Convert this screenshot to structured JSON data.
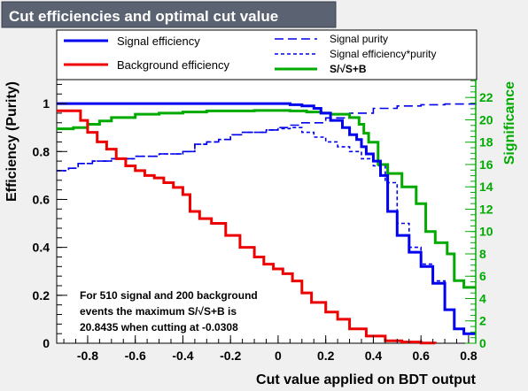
{
  "chart_data": {
    "type": "line",
    "title": "Cut efficiencies and optimal cut value",
    "xlabel": "Cut value applied on BDT output",
    "ylabel": "Efficiency (Purity)",
    "y2label": "Significance",
    "xlim": [
      -0.93,
      0.83
    ],
    "ylim": [
      0,
      1.1
    ],
    "y2lim": [
      0,
      23.6
    ],
    "x_ticks": [
      "-0.8",
      "-0.6",
      "-0.4",
      "-0.2",
      "0",
      "0.2",
      "0.4",
      "0.6",
      "0.8"
    ],
    "x_tick_values": [
      -0.8,
      -0.6,
      -0.4,
      -0.2,
      0,
      0.2,
      0.4,
      0.6,
      0.8
    ],
    "y_ticks": [
      "0",
      "0.2",
      "0.4",
      "0.6",
      "0.8",
      "1"
    ],
    "y_tick_values": [
      0,
      0.2,
      0.4,
      0.6,
      0.8,
      1
    ],
    "y2_ticks": [
      "0",
      "2",
      "4",
      "6",
      "8",
      "10",
      "12",
      "14",
      "16",
      "18",
      "20",
      "22"
    ],
    "y2_tick_values": [
      0,
      2,
      4,
      6,
      8,
      10,
      12,
      14,
      16,
      18,
      20,
      22
    ],
    "legend_position": "top, full width",
    "series": [
      {
        "name": "Signal efficiency",
        "color": "#0000ee",
        "style": "solid",
        "axis": "left",
        "x": [
          -0.93,
          0.05,
          0.1,
          0.15,
          0.18,
          0.22,
          0.27,
          0.3,
          0.33,
          0.35,
          0.37,
          0.4,
          0.43,
          0.46,
          0.5,
          0.55,
          0.6,
          0.65,
          0.7,
          0.74,
          0.78,
          0.83
        ],
        "y": [
          1.0,
          0.995,
          0.99,
          0.98,
          0.96,
          0.93,
          0.9,
          0.87,
          0.85,
          0.82,
          0.79,
          0.76,
          0.7,
          0.55,
          0.45,
          0.38,
          0.32,
          0.25,
          0.14,
          0.06,
          0.04,
          0.04
        ]
      },
      {
        "name": "Background efficiency",
        "color": "#ee0000",
        "style": "solid",
        "axis": "left",
        "x": [
          -0.93,
          -0.86,
          -0.83,
          -0.8,
          -0.76,
          -0.72,
          -0.68,
          -0.64,
          -0.6,
          -0.56,
          -0.52,
          -0.48,
          -0.44,
          -0.4,
          -0.37,
          -0.33,
          -0.28,
          -0.22,
          -0.16,
          -0.1,
          -0.06,
          -0.02,
          0.02,
          0.06,
          0.1,
          0.14,
          0.2,
          0.25,
          0.3,
          0.37,
          0.45,
          0.52,
          0.6,
          0.66
        ],
        "y": [
          0.97,
          0.97,
          0.93,
          0.88,
          0.84,
          0.81,
          0.77,
          0.74,
          0.72,
          0.7,
          0.69,
          0.67,
          0.65,
          0.62,
          0.55,
          0.52,
          0.5,
          0.45,
          0.4,
          0.36,
          0.33,
          0.31,
          0.29,
          0.26,
          0.21,
          0.17,
          0.13,
          0.1,
          0.06,
          0.03,
          0.01,
          0.005,
          0.001,
          0.0
        ]
      },
      {
        "name": "Signal purity",
        "color": "#0000ee",
        "style": "longdash",
        "axis": "left",
        "x": [
          -0.93,
          -0.88,
          -0.84,
          -0.78,
          -0.7,
          -0.6,
          -0.5,
          -0.4,
          -0.35,
          -0.3,
          -0.25,
          -0.2,
          -0.15,
          -0.1,
          -0.05,
          0.0,
          0.05,
          0.1,
          0.2,
          0.3,
          0.4,
          0.5,
          0.6,
          0.7,
          0.83
        ],
        "y": [
          0.72,
          0.73,
          0.75,
          0.76,
          0.77,
          0.78,
          0.79,
          0.8,
          0.83,
          0.84,
          0.85,
          0.87,
          0.88,
          0.88,
          0.89,
          0.9,
          0.91,
          0.92,
          0.94,
          0.96,
          0.98,
          0.99,
          0.995,
          0.998,
          1.0
        ]
      },
      {
        "name": "Signal efficiency*purity",
        "color": "#0000ee",
        "style": "dash",
        "axis": "left",
        "x": [
          -0.93,
          -0.88,
          -0.84,
          -0.78,
          -0.7,
          -0.6,
          -0.5,
          -0.4,
          -0.35,
          -0.3,
          -0.25,
          -0.2,
          -0.15,
          -0.1,
          -0.05,
          0.0,
          0.05,
          0.1,
          0.15,
          0.2,
          0.25,
          0.3,
          0.35,
          0.4,
          0.45,
          0.5,
          0.55,
          0.6,
          0.65,
          0.7,
          0.74,
          0.78,
          0.83
        ],
        "y": [
          0.72,
          0.73,
          0.75,
          0.76,
          0.77,
          0.78,
          0.79,
          0.8,
          0.83,
          0.84,
          0.85,
          0.87,
          0.88,
          0.88,
          0.89,
          0.895,
          0.9,
          0.88,
          0.86,
          0.84,
          0.82,
          0.8,
          0.77,
          0.74,
          0.67,
          0.5,
          0.4,
          0.33,
          0.26,
          0.14,
          0.06,
          0.04,
          0.04
        ]
      },
      {
        "name": "S/√S+B",
        "color": "#00aa00",
        "style": "solid",
        "axis": "right",
        "x": [
          -0.93,
          -0.86,
          -0.8,
          -0.75,
          -0.7,
          -0.6,
          -0.5,
          -0.4,
          -0.3,
          -0.2,
          -0.1,
          -0.03,
          0.05,
          0.12,
          0.18,
          0.22,
          0.3,
          0.34,
          0.36,
          0.38,
          0.42,
          0.46,
          0.52,
          0.58,
          0.62,
          0.66,
          0.71,
          0.74,
          0.78,
          0.83
        ],
        "y": [
          19.2,
          19.3,
          19.6,
          19.9,
          20.2,
          20.5,
          20.6,
          20.7,
          20.8,
          20.8,
          20.84,
          20.84,
          20.8,
          20.7,
          20.6,
          20.5,
          20.2,
          19.6,
          18.8,
          18.0,
          16.0,
          15.2,
          14.0,
          12.5,
          10.0,
          9.0,
          8.0,
          5.6,
          5.0,
          5.0
        ]
      }
    ],
    "annotation_lines": [
      "For 510 signal and 200 background",
      "events the maximum S/√S+B is",
      "20.8435 when cutting at -0.0308"
    ],
    "colors": {
      "signal": "#0000ee",
      "background": "#ee0000",
      "significance": "#00aa00",
      "title_box": "#5b6272",
      "frame_bg": "#f0f0f0"
    }
  }
}
